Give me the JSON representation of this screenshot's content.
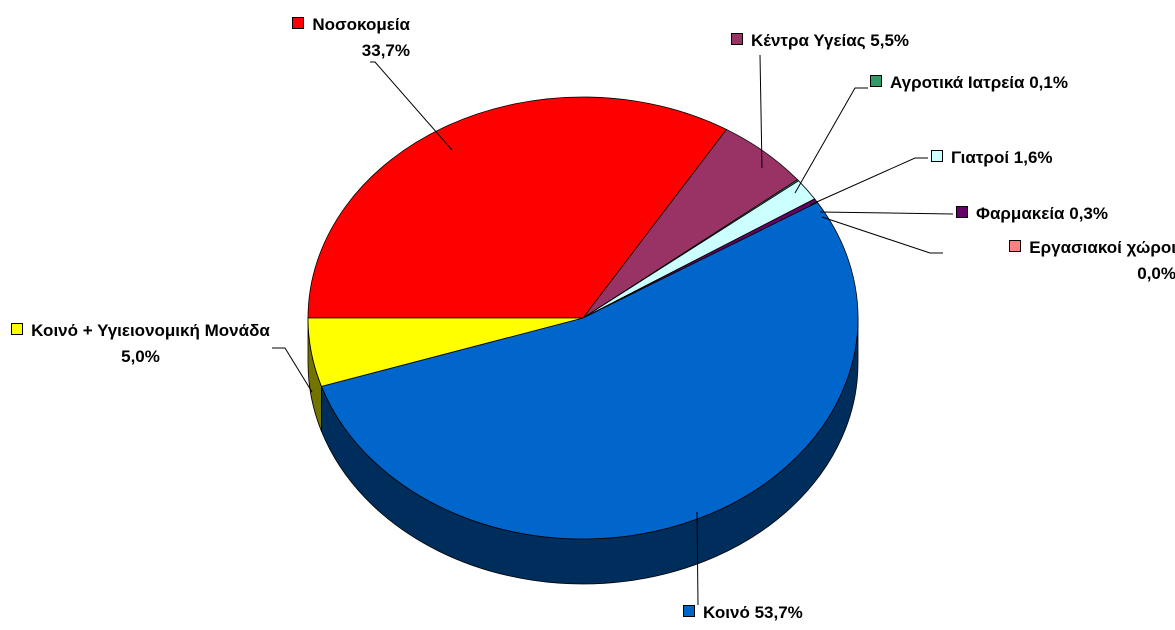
{
  "chart_data": {
    "type": "pie3d",
    "categories": [
      "Νοσοκομεία",
      "Κέντρα Υγείας",
      "Αγροτικά Ιατρεία",
      "Γιατροί",
      "Φαρμακεία",
      "Εργασιακοί χώροι",
      "Κοινό",
      "Κοινό + Υγιειονομική Μονάδα"
    ],
    "values": [
      33.7,
      5.5,
      0.1,
      1.6,
      0.3,
      0.0,
      53.7,
      5.0
    ],
    "value_labels": [
      "33,7%",
      "5,5%",
      "0,1%",
      "1,6%",
      "0,3%",
      "0,0%",
      "53,7%",
      "5,0%"
    ],
    "colors": [
      "#ff0000",
      "#993366",
      "#339966",
      "#ccffff",
      "#660066",
      "#ff8080",
      "#0066cc",
      "#ffff00"
    ]
  }
}
